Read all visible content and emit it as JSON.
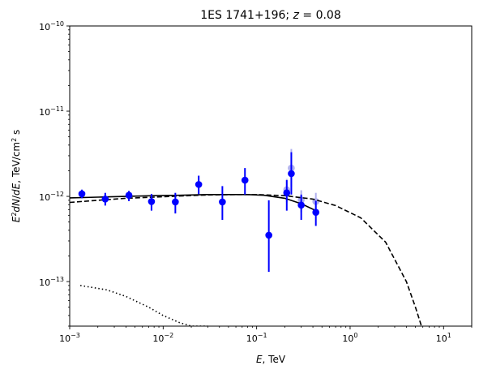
{
  "chart_data": {
    "type": "scatter",
    "title": "1ES 1741+196; z = 0.08",
    "xlabel": "E, TeV",
    "ylabel": "E²dN/dE, TeV/cm² s",
    "x_scale": "log",
    "y_scale": "log",
    "xlim": [
      0.001,
      20
    ],
    "ylim": [
      3e-14,
      1e-10
    ],
    "grid": false,
    "x_ticks": [
      {
        "value": 0.001,
        "base": "10",
        "exp": "−3"
      },
      {
        "value": 0.01,
        "base": "10",
        "exp": "−2"
      },
      {
        "value": 0.1,
        "base": "10",
        "exp": "−1"
      },
      {
        "value": 1,
        "base": "10",
        "exp": "0"
      },
      {
        "value": 10,
        "base": "10",
        "exp": "1"
      }
    ],
    "y_ticks": [
      {
        "value": 1e-13,
        "base": "10",
        "exp": "−13"
      },
      {
        "value": 1e-12,
        "base": "10",
        "exp": "−12"
      },
      {
        "value": 1e-11,
        "base": "10",
        "exp": "−11"
      },
      {
        "value": 1e-10,
        "base": "10",
        "exp": "−10"
      }
    ],
    "colors": {
      "points": "#0000ff",
      "errorbars": "#0000ff",
      "faded_points": "#b0b0f0",
      "model_lines": "#000000"
    },
    "series": [
      {
        "kind": "points",
        "x": [
          0.00135,
          0.0024,
          0.0043,
          0.0075,
          0.0135,
          0.024,
          0.043,
          0.075,
          0.135,
          0.21,
          0.235,
          0.3,
          0.43
        ],
        "y": [
          1.07e-12,
          9.3e-13,
          1.03e-12,
          8.7e-13,
          8.6e-13,
          1.38e-12,
          8.6e-13,
          1.55e-12,
          3.5e-13,
          1.1e-12,
          1.85e-12,
          7.9e-13,
          6.5e-13
        ],
        "y_low": [
          9.5e-13,
          7.8e-13,
          8.8e-13,
          6.8e-13,
          6.3e-13,
          1.06e-12,
          5.3e-13,
          1.05e-12,
          1.3e-13,
          6.8e-13,
          1.05e-12,
          5.3e-13,
          4.5e-13
        ],
        "y_high": [
          1.2e-12,
          1.1e-12,
          1.16e-12,
          1.07e-12,
          1.1e-12,
          1.75e-12,
          1.32e-12,
          2.15e-12,
          9e-13,
          1.55e-12,
          3.3e-12,
          1.05e-12,
          8.9e-13
        ]
      },
      {
        "kind": "faded_points",
        "x": [
          0.21,
          0.235,
          0.3,
          0.43
        ],
        "y": [
          1.2e-12,
          2.15e-12,
          9.1e-13,
          8.7e-13
        ],
        "y_low": [
          8.5e-13,
          1.3e-12,
          6.5e-13,
          6.4e-13
        ],
        "y_high": [
          1.6e-12,
          3.6e-12,
          1.18e-12,
          1.1e-12
        ]
      },
      {
        "kind": "solid-line",
        "x": [
          0.001,
          0.002,
          0.004,
          0.008,
          0.015,
          0.03,
          0.05,
          0.08,
          0.12,
          0.2,
          0.3,
          0.43
        ],
        "y": [
          9.6e-13,
          9.8e-13,
          1e-12,
          1.02e-12,
          1.03e-12,
          1.05e-12,
          1.05e-12,
          1.05e-12,
          1.03e-12,
          9.5e-13,
          8.2e-13,
          6.8e-13
        ]
      },
      {
        "kind": "dashed-line",
        "x": [
          0.001,
          0.002,
          0.004,
          0.008,
          0.015,
          0.03,
          0.06,
          0.1,
          0.2,
          0.4,
          0.7,
          1.3,
          2.4,
          4,
          5,
          5.8
        ],
        "y": [
          8.5e-13,
          9e-13,
          9.5e-13,
          9.8e-13,
          1.01e-12,
          1.04e-12,
          1.05e-12,
          1.05e-12,
          1.02e-12,
          9.3e-13,
          7.8e-13,
          5.6e-13,
          2.9e-13,
          1e-13,
          5e-14,
          3e-14
        ]
      },
      {
        "kind": "dotted-line",
        "x": [
          0.0013,
          0.0025,
          0.004,
          0.007,
          0.01,
          0.015,
          0.02,
          0.03
        ],
        "y": [
          9e-14,
          8e-14,
          6.7e-14,
          5e-14,
          4e-14,
          3.3e-14,
          3e-14,
          3e-14
        ]
      }
    ]
  }
}
